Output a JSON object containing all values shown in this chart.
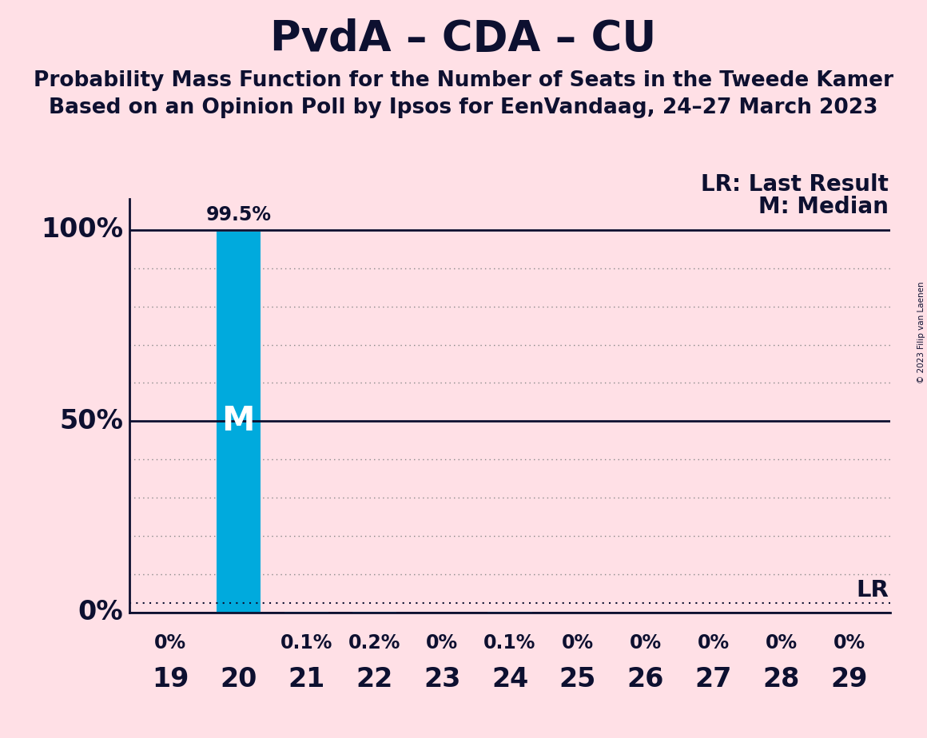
{
  "title": "PvdA – CDA – CU",
  "subtitle1": "Probability Mass Function for the Number of Seats in the Tweede Kamer",
  "subtitle2": "Based on an Opinion Poll by Ipsos for EenVandaag, 24–27 March 2023",
  "copyright": "© 2023 Filip van Laenen",
  "seats": [
    19,
    20,
    21,
    22,
    23,
    24,
    25,
    26,
    27,
    28,
    29
  ],
  "probabilities": [
    0.0,
    99.5,
    0.1,
    0.2,
    0.0,
    0.1,
    0.0,
    0.0,
    0.0,
    0.0,
    0.0
  ],
  "bar_labels": [
    "0%",
    "",
    "0.1%",
    "0.2%",
    "0%",
    "0.1%",
    "0%",
    "0%",
    "0%",
    "0%",
    "0%"
  ],
  "bar_color": "#00AADD",
  "background_color": "#FFE0E6",
  "median_seat": 20,
  "lr_value": 2.5,
  "lr_label": "LR",
  "legend_lr": "LR: Last Result",
  "legend_m": "M: Median",
  "ylabel_100": "100%",
  "ylabel_50": "50%",
  "ylabel_0": "0%",
  "title_fontsize": 38,
  "subtitle_fontsize": 19,
  "axis_label_fontsize": 24,
  "bar_label_fontsize": 17,
  "annotation_fontsize": 21,
  "legend_fontsize": 20,
  "text_color": "#0D1030",
  "dot_color": "#888888",
  "ylim_max": 108
}
